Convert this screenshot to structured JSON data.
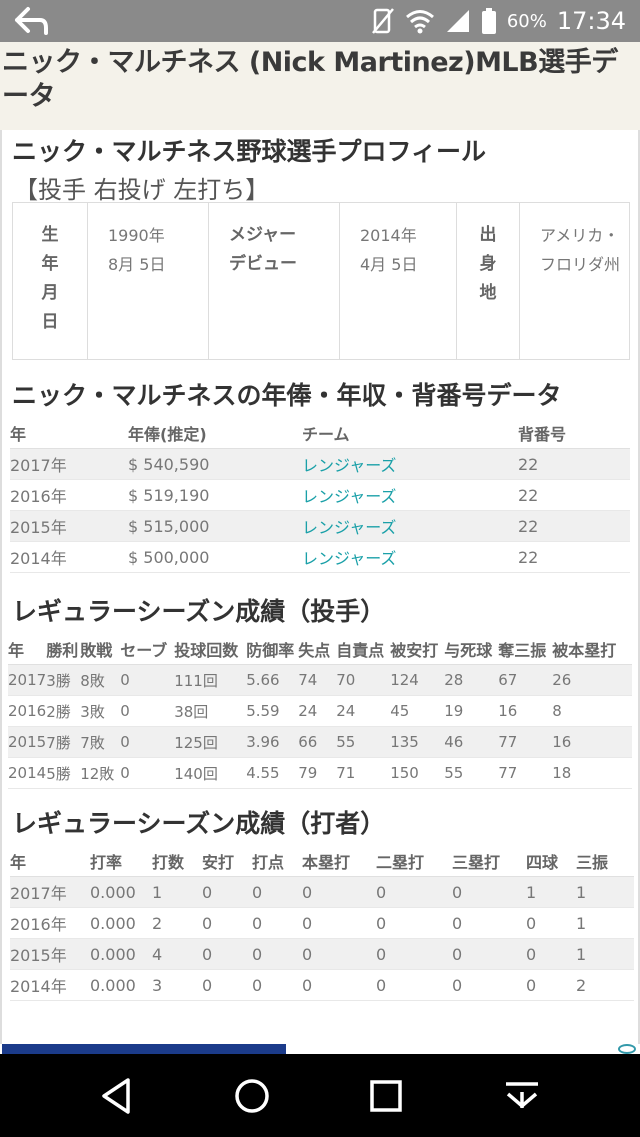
{
  "status": {
    "battery_pct": "60%",
    "time": "17:34"
  },
  "header": {
    "title": "ニック・マルチネス (Nick Martinez)MLB選手データ"
  },
  "profile": {
    "title": "ニック・マルチネス野球選手プロフィール",
    "subtitle": "【投手 右投げ 左打ち】",
    "birth_label": [
      "生",
      "年",
      "月",
      "日"
    ],
    "birth_value": [
      "1990年",
      "8月 5日"
    ],
    "debut_label": [
      "メジャー",
      "デビュー"
    ],
    "debut_value": [
      "2014年",
      "4月 5日"
    ],
    "origin_label": [
      "出",
      "身",
      "地"
    ],
    "origin_value": [
      "アメリカ・",
      "フロリダ州"
    ]
  },
  "salary": {
    "title": "ニック・マルチネスの年俸・年収・背番号データ",
    "headers": [
      "年",
      "年俸(推定)",
      "チーム",
      "背番号"
    ],
    "rows": [
      [
        "2017年",
        "$ 540,590",
        "レンジャーズ",
        "22"
      ],
      [
        "2016年",
        "$ 519,190",
        "レンジャーズ",
        "22"
      ],
      [
        "2015年",
        "$ 515,000",
        "レンジャーズ",
        "22"
      ],
      [
        "2014年",
        "$ 500,000",
        "レンジャーズ",
        "22"
      ]
    ]
  },
  "pitching": {
    "title": "レギュラーシーズン成績（投手）",
    "headers": [
      "年",
      "勝利",
      "敗戦",
      "セーブ",
      "投球回数",
      "防御率",
      "失点",
      "自責点",
      "被安打",
      "与死球",
      "奪三振",
      "被本塁打"
    ],
    "rows": [
      [
        "2017",
        "3勝",
        "8敗",
        "0",
        "111回",
        "5.66",
        "74",
        "70",
        "124",
        "28",
        "67",
        "26"
      ],
      [
        "2016",
        "2勝",
        "3敗",
        "0",
        "38回",
        "5.59",
        "24",
        "24",
        "45",
        "19",
        "16",
        "8"
      ],
      [
        "2015",
        "7勝",
        "7敗",
        "0",
        "125回",
        "3.96",
        "66",
        "55",
        "135",
        "46",
        "77",
        "16"
      ],
      [
        "2014",
        "5勝",
        "12敗",
        "0",
        "140回",
        "4.55",
        "79",
        "71",
        "150",
        "55",
        "77",
        "18"
      ]
    ]
  },
  "batting": {
    "title": "レギュラーシーズン成績（打者）",
    "headers": [
      "年",
      "打率",
      "打数",
      "安打",
      "打点",
      "本塁打",
      "二塁打",
      "三塁打",
      "四球",
      "三振"
    ],
    "rows": [
      [
        "2017年",
        "0.000",
        "1",
        "0",
        "0",
        "0",
        "0",
        "0",
        "1",
        "1"
      ],
      [
        "2016年",
        "0.000",
        "2",
        "0",
        "0",
        "0",
        "0",
        "0",
        "0",
        "1"
      ],
      [
        "2015年",
        "0.000",
        "4",
        "0",
        "0",
        "0",
        "0",
        "0",
        "0",
        "1"
      ],
      [
        "2014年",
        "0.000",
        "3",
        "0",
        "0",
        "0",
        "0",
        "0",
        "0",
        "2"
      ]
    ]
  },
  "colors": {
    "status_bar": "#8a8a8a",
    "link": "#1aa0a8",
    "nav_bar": "#000000"
  }
}
